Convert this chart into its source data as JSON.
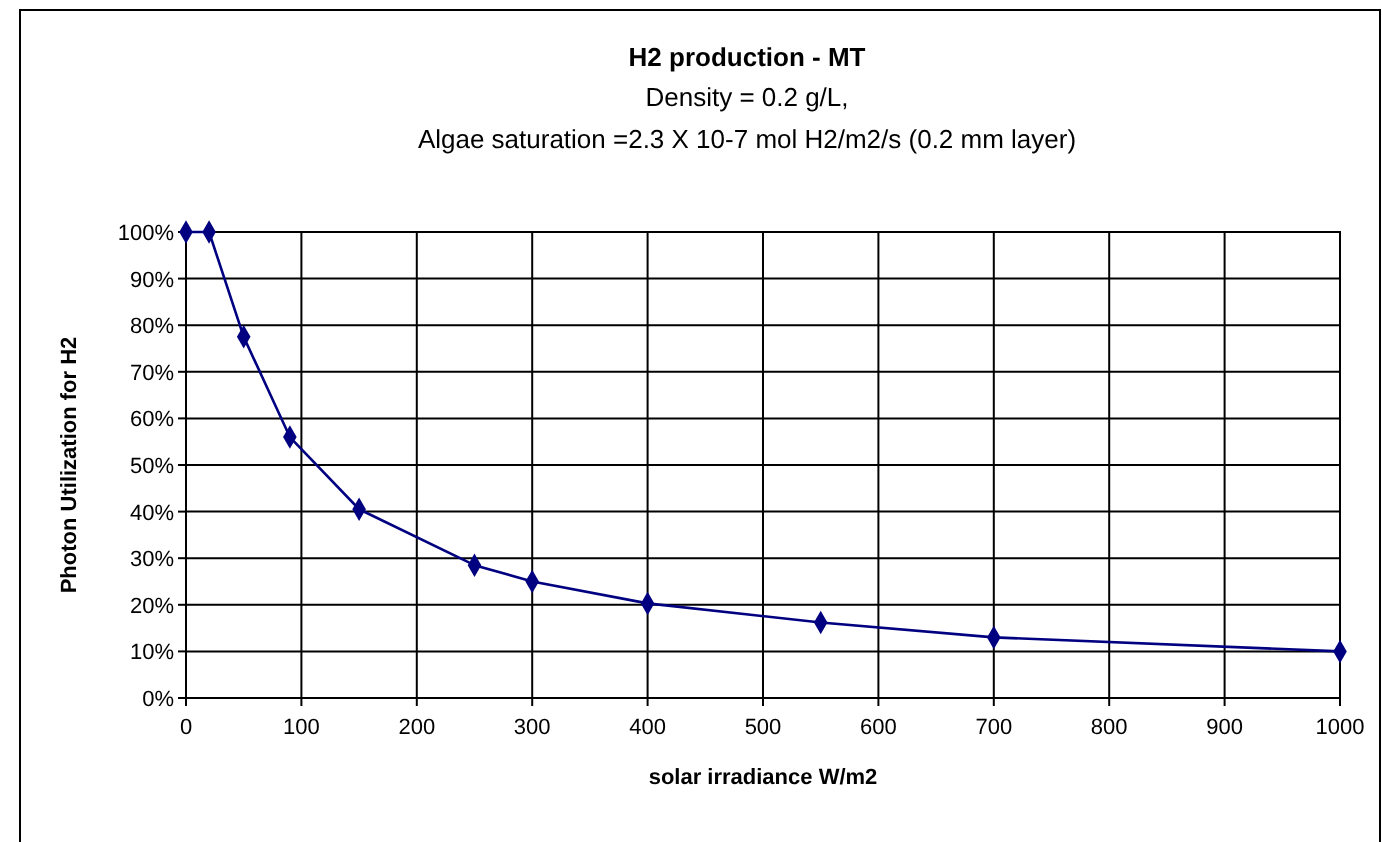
{
  "chart_data": {
    "type": "line",
    "title": "H2 production - MT",
    "subtitle": "Density = 0.2 g/L,\nAlgae saturation  =2.3 X 10-7 mol H2/m2/s (0.2 mm layer)",
    "xlabel": "solar irradiance W/m2",
    "ylabel": "Photon Utilization for H2",
    "x": [
      0,
      20,
      50,
      90,
      150,
      250,
      300,
      400,
      550,
      700,
      1000
    ],
    "series": [
      {
        "color": "#000080",
        "values": [
          100,
          100,
          77.5,
          56,
          40.5,
          28.5,
          25,
          20.3,
          16.2,
          13,
          10
        ]
      }
    ],
    "xlim": [
      0,
      1000
    ],
    "xticks": [
      0,
      100,
      200,
      300,
      400,
      500,
      600,
      700,
      800,
      900,
      1000
    ],
    "ylim": [
      0,
      100
    ],
    "yticks": [
      {
        "value": 0,
        "label": "0%"
      },
      {
        "value": 10,
        "label": "10%"
      },
      {
        "value": 20,
        "label": "20%"
      },
      {
        "value": 30,
        "label": "30%"
      },
      {
        "value": 40,
        "label": "40%"
      },
      {
        "value": 50,
        "label": "50%"
      },
      {
        "value": 60,
        "label": "60%"
      },
      {
        "value": 70,
        "label": "70%"
      },
      {
        "value": 80,
        "label": "80%"
      },
      {
        "value": 90,
        "label": "90%"
      },
      {
        "value": 100,
        "label": "100%"
      }
    ],
    "grid": true,
    "marker": "diamond",
    "line_style": "solid"
  }
}
